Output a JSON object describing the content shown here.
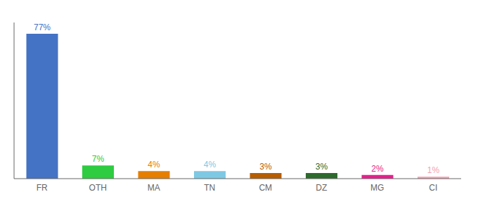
{
  "chart_data": {
    "type": "bar",
    "categories": [
      "FR",
      "OTH",
      "MA",
      "TN",
      "CM",
      "DZ",
      "MG",
      "CI"
    ],
    "values": [
      77,
      7,
      4,
      4,
      3,
      3,
      2,
      1
    ],
    "value_labels": [
      "77%",
      "7%",
      "4%",
      "4%",
      "3%",
      "3%",
      "2%",
      "1%"
    ],
    "colors": [
      "#4472c4",
      "#2ecc40",
      "#e67e00",
      "#7ec8e3",
      "#b85c00",
      "#2d6a2d",
      "#e91e8c",
      "#f4a0b0"
    ],
    "ylim": [
      0,
      83
    ],
    "grid": false,
    "data_labels": true,
    "tick_labels": "x"
  }
}
